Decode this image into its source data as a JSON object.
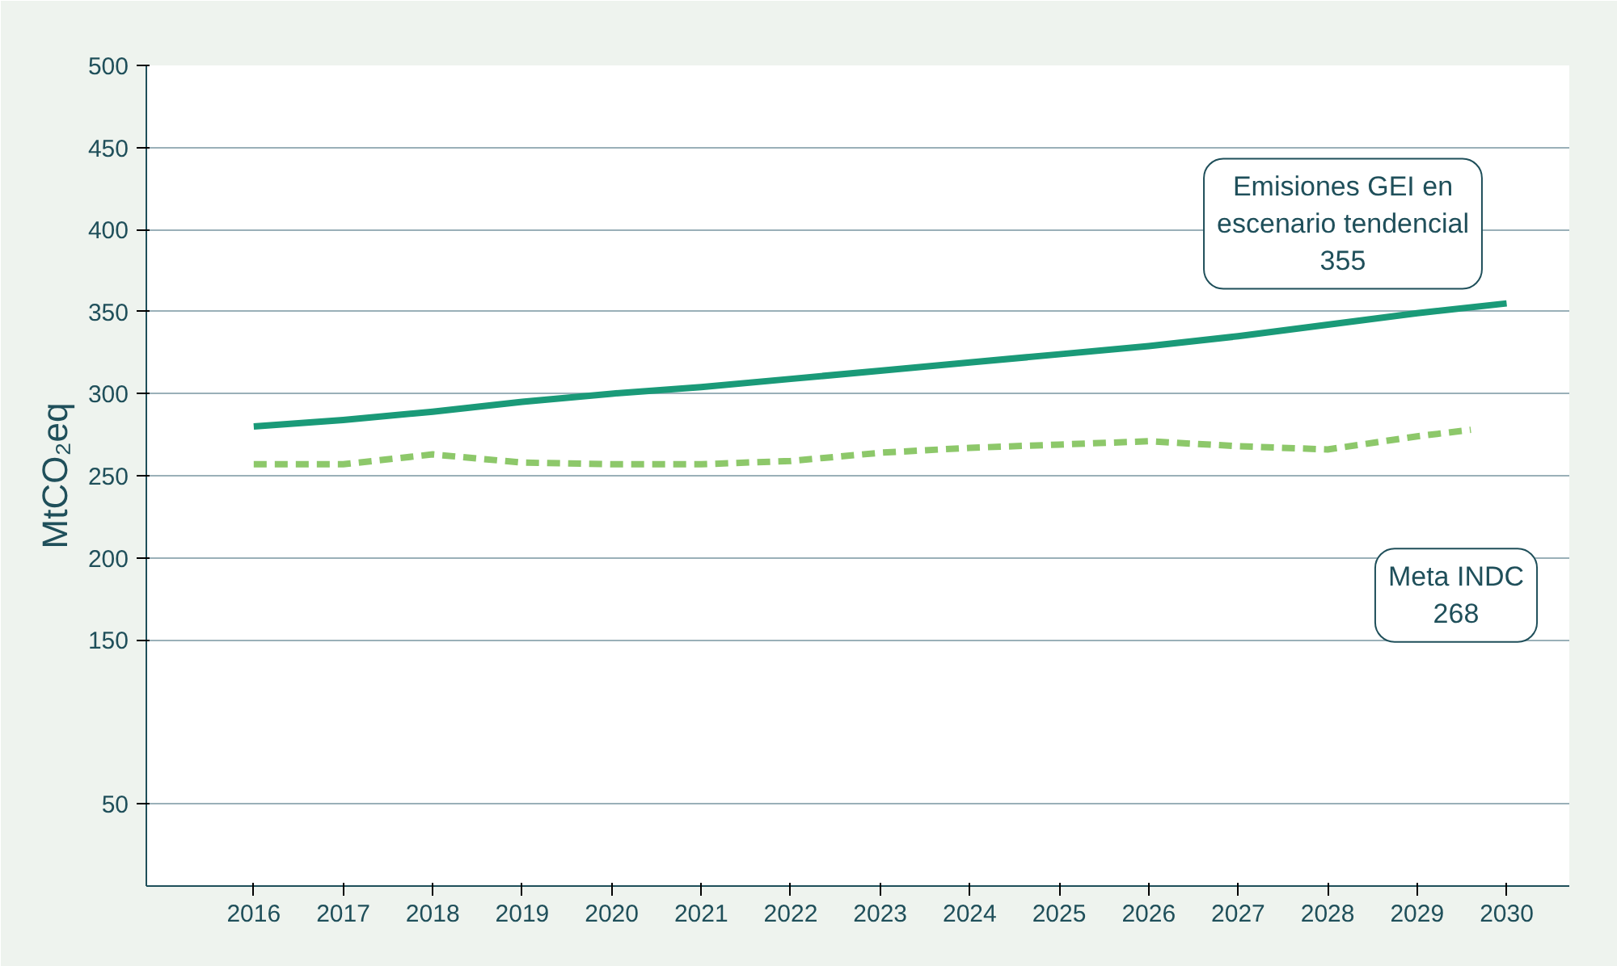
{
  "chart_data": {
    "type": "line",
    "ylabel": "MtCO₂eq",
    "x": [
      2016,
      2017,
      2018,
      2019,
      2020,
      2021,
      2022,
      2023,
      2024,
      2025,
      2026,
      2027,
      2028,
      2029,
      2030
    ],
    "series": [
      {
        "color": "#1a9a78",
        "line_style": "solid",
        "values": [
          280,
          284,
          289,
          295,
          300,
          304,
          309,
          314,
          319,
          324,
          329,
          335,
          342,
          349,
          355
        ]
      },
      {
        "color": "#8dc86a",
        "line_style": "dashed",
        "x": [
          2016,
          2017,
          2018,
          2019,
          2020,
          2021,
          2022,
          2023,
          2024,
          2025,
          2026,
          2027,
          2028,
          2029,
          2029.6
        ],
        "values": [
          257,
          257,
          263,
          258,
          257,
          257,
          259,
          264,
          267,
          269,
          271,
          268,
          266,
          274,
          278
        ]
      }
    ],
    "xlim": [
      2014.8,
      2030.7
    ],
    "xticks": [
      2016,
      2017,
      2018,
      2019,
      2020,
      2021,
      2022,
      2023,
      2024,
      2025,
      2026,
      2027,
      2028,
      2029,
      2030
    ],
    "ylim": [
      0,
      500
    ],
    "yticks": [
      50,
      150,
      200,
      250,
      300,
      350,
      400,
      450,
      500
    ],
    "grid": "y",
    "annotations": [
      "Emisiones GEI en\nescenario tendencial\n355",
      "Meta INDC\n268"
    ]
  }
}
